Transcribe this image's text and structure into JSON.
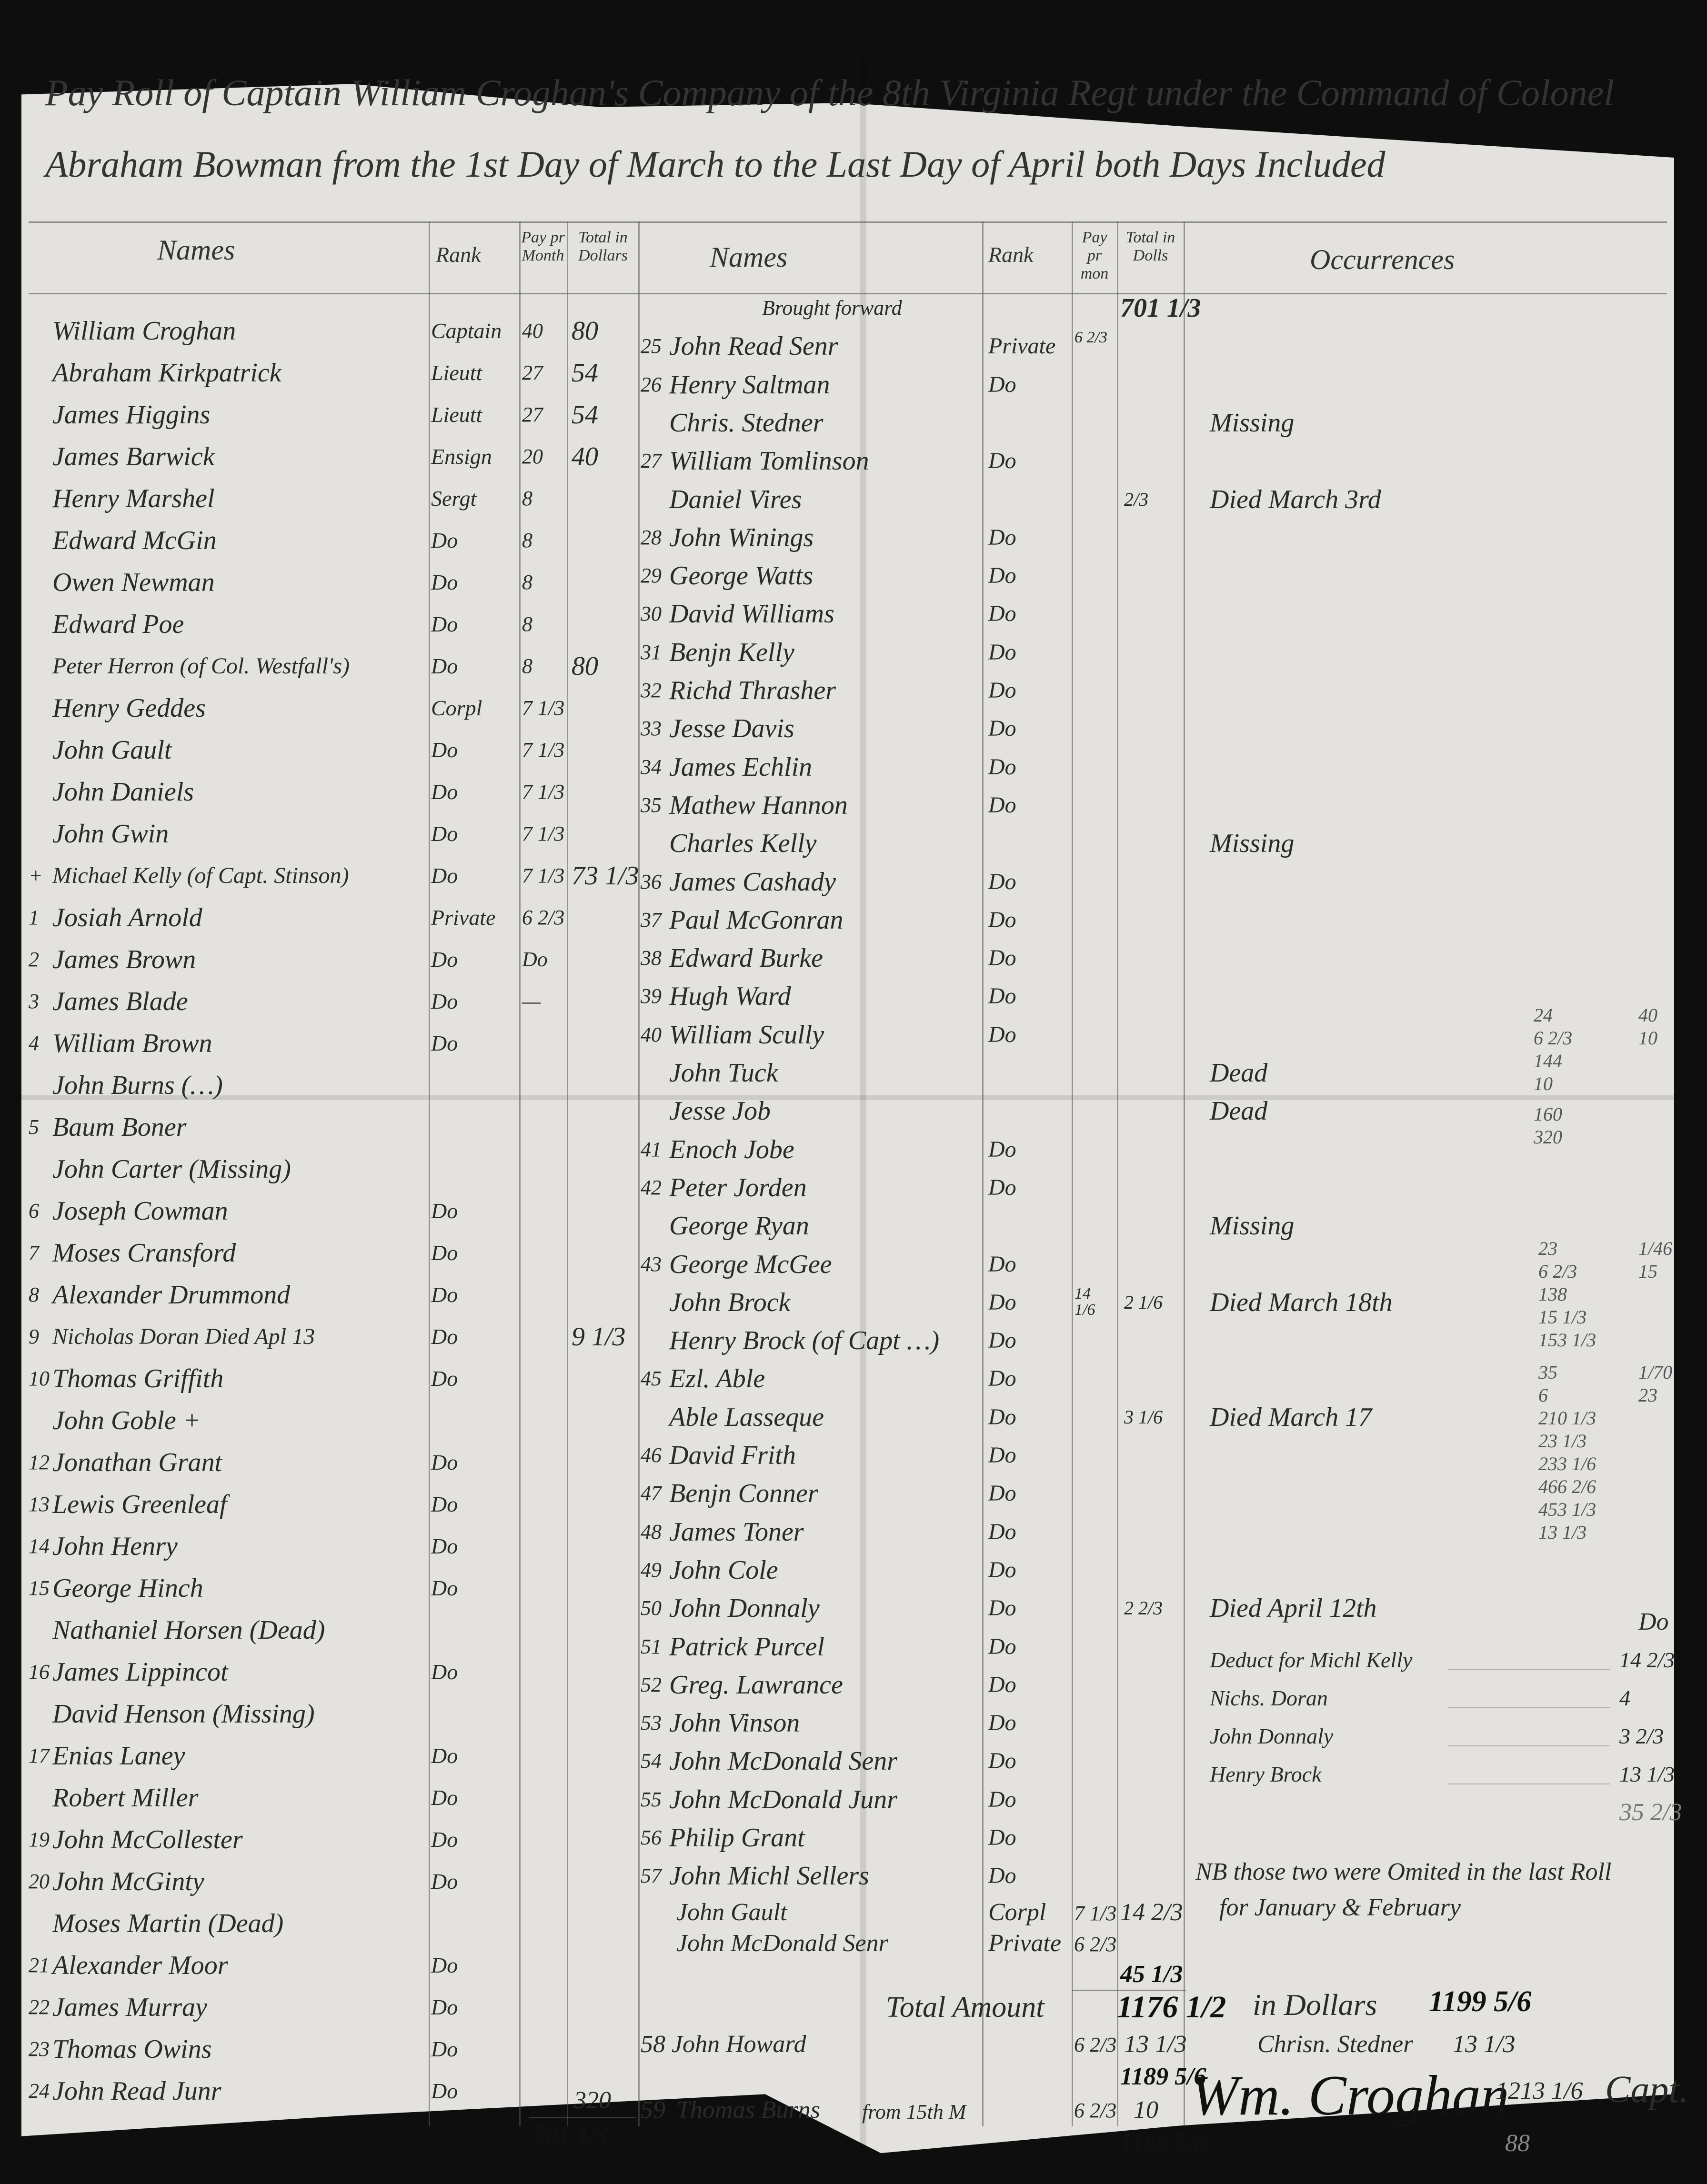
{
  "title": {
    "line1": "Pay Roll of Captain William Croghan's Company of the 8th Virginia Regt under the Command of Colonel",
    "line2": "Abraham Bowman from the 1st Day of March to the Last Day of April both Days Included"
  },
  "headers": {
    "left": {
      "names": "Names",
      "rank": "Rank",
      "pay": "Pay pr Month",
      "total": "Total in Dollars"
    },
    "right": {
      "names": "Names",
      "rank": "Rank",
      "pay": "Pay pr mon",
      "total": "Total in Dolls",
      "occurrences": "Occurrences"
    }
  },
  "left": {
    "rows": [
      {
        "num": "",
        "name": "William Croghan",
        "rank": "Captain",
        "pay": "40",
        "total": "80"
      },
      {
        "num": "",
        "name": "Abraham Kirkpatrick",
        "rank": "Lieutt",
        "pay": "27",
        "total": "54"
      },
      {
        "num": "",
        "name": "James Higgins",
        "rank": "Lieutt",
        "pay": "27",
        "total": "54"
      },
      {
        "num": "",
        "name": "James Barwick",
        "rank": "Ensign",
        "pay": "20",
        "total": "40"
      },
      {
        "num": "",
        "name": "Henry Marshel",
        "rank": "Sergt",
        "pay": "8",
        "total": ""
      },
      {
        "num": "",
        "name": "Edward McGin",
        "rank": "Do",
        "pay": "8",
        "total": ""
      },
      {
        "num": "",
        "name": "Owen Newman",
        "rank": "Do",
        "pay": "8",
        "total": ""
      },
      {
        "num": "",
        "name": "Edward Poe",
        "rank": "Do",
        "pay": "8",
        "total": ""
      },
      {
        "num": "",
        "name": "Peter Herron (of Col. Westfall's)",
        "rank": "Do",
        "pay": "8",
        "total": "80"
      },
      {
        "num": "",
        "name": "Henry Geddes",
        "rank": "Corpl",
        "pay": "7 1/3",
        "total": ""
      },
      {
        "num": "",
        "name": "John Gault",
        "rank": "Do",
        "pay": "7 1/3",
        "total": ""
      },
      {
        "num": "",
        "name": "John Daniels",
        "rank": "Do",
        "pay": "7 1/3",
        "total": ""
      },
      {
        "num": "",
        "name": "John Gwin",
        "rank": "Do",
        "pay": "7 1/3",
        "total": ""
      },
      {
        "num": "+",
        "name": "Michael Kelly (of Capt. Stinson)",
        "rank": "Do",
        "pay": "7 1/3",
        "total": "73 1/3"
      },
      {
        "num": "1",
        "name": "Josiah Arnold",
        "rank": "Private",
        "pay": "6 2/3",
        "total": ""
      },
      {
        "num": "2",
        "name": "James Brown",
        "rank": "Do",
        "pay": "Do",
        "total": ""
      },
      {
        "num": "3",
        "name": "James Blade",
        "rank": "Do",
        "pay": "—",
        "total": ""
      },
      {
        "num": "4",
        "name": "William Brown",
        "rank": "Do",
        "pay": "",
        "total": ""
      },
      {
        "num": "",
        "name": "John Burns (…)",
        "rank": "",
        "pay": "",
        "total": ""
      },
      {
        "num": "5",
        "name": "Baum Boner",
        "rank": "",
        "pay": "",
        "total": ""
      },
      {
        "num": "",
        "name": "John Carter (Missing)",
        "rank": "",
        "pay": "",
        "total": ""
      },
      {
        "num": "6",
        "name": "Joseph Cowman",
        "rank": "Do",
        "pay": "",
        "total": ""
      },
      {
        "num": "7",
        "name": "Moses Cransford",
        "rank": "Do",
        "pay": "",
        "total": ""
      },
      {
        "num": "8",
        "name": "Alexander Drummond",
        "rank": "Do",
        "pay": "",
        "total": ""
      },
      {
        "num": "9",
        "name": "Nicholas Doran Died Apl 13",
        "rank": "Do",
        "pay": "",
        "total": "9 1/3"
      },
      {
        "num": "10",
        "name": "Thomas Griffith",
        "rank": "Do",
        "pay": "",
        "total": ""
      },
      {
        "num": "",
        "name": "John Goble +",
        "rank": "",
        "pay": "",
        "total": ""
      },
      {
        "num": "12",
        "name": "Jonathan Grant",
        "rank": "Do",
        "pay": "",
        "total": ""
      },
      {
        "num": "13",
        "name": "Lewis Greenleaf",
        "rank": "Do",
        "pay": "",
        "total": ""
      },
      {
        "num": "14",
        "name": "John Henry",
        "rank": "Do",
        "pay": "",
        "total": ""
      },
      {
        "num": "15",
        "name": "George Hinch",
        "rank": "Do",
        "pay": "",
        "total": ""
      },
      {
        "num": "",
        "name": "Nathaniel Horsen (Dead)",
        "rank": "",
        "pay": "",
        "total": ""
      },
      {
        "num": "16",
        "name": "James Lippincot",
        "rank": "Do",
        "pay": "",
        "total": ""
      },
      {
        "num": "",
        "name": "David Henson (Missing)",
        "rank": "",
        "pay": "",
        "total": ""
      },
      {
        "num": "17",
        "name": "Enias Laney",
        "rank": "Do",
        "pay": "",
        "total": ""
      },
      {
        "num": "",
        "name": "Robert Miller",
        "rank": "Do",
        "pay": "",
        "total": ""
      },
      {
        "num": "19",
        "name": "John McCollester",
        "rank": "Do",
        "pay": "",
        "total": ""
      },
      {
        "num": "20",
        "name": "John McGinty",
        "rank": "Do",
        "pay": "",
        "total": ""
      },
      {
        "num": "",
        "name": "Moses Martin (Dead)",
        "rank": "",
        "pay": "",
        "total": ""
      },
      {
        "num": "21",
        "name": "Alexander Moor",
        "rank": "Do",
        "pay": "",
        "total": ""
      },
      {
        "num": "22",
        "name": "James Murray",
        "rank": "Do",
        "pay": "",
        "total": ""
      },
      {
        "num": "23",
        "name": "Thomas Owins",
        "rank": "Do",
        "pay": "",
        "total": ""
      },
      {
        "num": "24",
        "name": "John Read Junr",
        "rank": "Do",
        "pay": "",
        "total": ""
      }
    ],
    "subtotal": "320",
    "carried": "701 1/3"
  },
  "right": {
    "rows": [
      {
        "num": "",
        "name": "Brought forward",
        "rank": "",
        "pay": "",
        "total": "701 1/3",
        "occ": ""
      },
      {
        "num": "25",
        "name": "John Read Senr",
        "rank": "Private",
        "pay": "6 2/3",
        "total": "",
        "occ": ""
      },
      {
        "num": "26",
        "name": "Henry Saltman",
        "rank": "Do",
        "pay": "",
        "total": "",
        "occ": ""
      },
      {
        "num": "",
        "name": "Chris. Stedner",
        "rank": "",
        "pay": "",
        "total": "",
        "occ": "Missing"
      },
      {
        "num": "27",
        "name": "William Tomlinson",
        "rank": "Do",
        "pay": "",
        "total": "",
        "occ": ""
      },
      {
        "num": "",
        "name": "Daniel Vires",
        "rank": "",
        "pay": "",
        "total": "2/3",
        "occ": "Died March 3rd"
      },
      {
        "num": "28",
        "name": "John Winings",
        "rank": "Do",
        "pay": "",
        "total": "",
        "occ": ""
      },
      {
        "num": "29",
        "name": "George Watts",
        "rank": "Do",
        "pay": "",
        "total": "",
        "occ": ""
      },
      {
        "num": "30",
        "name": "David Williams",
        "rank": "Do",
        "pay": "",
        "total": "",
        "occ": ""
      },
      {
        "num": "31",
        "name": "Benjn Kelly",
        "rank": "Do",
        "pay": "",
        "total": "",
        "occ": ""
      },
      {
        "num": "32",
        "name": "Richd Thrasher",
        "rank": "Do",
        "pay": "",
        "total": "",
        "occ": ""
      },
      {
        "num": "33",
        "name": "Jesse Davis",
        "rank": "Do",
        "pay": "",
        "total": "",
        "occ": ""
      },
      {
        "num": "34",
        "name": "James Echlin",
        "rank": "Do",
        "pay": "",
        "total": "",
        "occ": ""
      },
      {
        "num": "35",
        "name": "Mathew Hannon",
        "rank": "Do",
        "pay": "",
        "total": "",
        "occ": ""
      },
      {
        "num": "",
        "name": "Charles Kelly",
        "rank": "",
        "pay": "",
        "total": "",
        "occ": "Missing"
      },
      {
        "num": "36",
        "name": "James Cashady",
        "rank": "Do",
        "pay": "",
        "total": "",
        "occ": ""
      },
      {
        "num": "37",
        "name": "Paul McGonran",
        "rank": "Do",
        "pay": "",
        "total": "",
        "occ": ""
      },
      {
        "num": "38",
        "name": "Edward Burke",
        "rank": "Do",
        "pay": "",
        "total": "",
        "occ": ""
      },
      {
        "num": "39",
        "name": "Hugh Ward",
        "rank": "Do",
        "pay": "",
        "total": "",
        "occ": ""
      },
      {
        "num": "40",
        "name": "William Scully",
        "rank": "Do",
        "pay": "",
        "total": "",
        "occ": ""
      },
      {
        "num": "",
        "name": "John Tuck",
        "rank": "",
        "pay": "",
        "total": "",
        "occ": "Dead"
      },
      {
        "num": "",
        "name": "Jesse Job",
        "rank": "",
        "pay": "",
        "total": "",
        "occ": "Dead"
      },
      {
        "num": "41",
        "name": "Enoch Jobe",
        "rank": "Do",
        "pay": "",
        "total": "",
        "occ": ""
      },
      {
        "num": "42",
        "name": "Peter Jorden",
        "rank": "Do",
        "pay": "",
        "total": "",
        "occ": ""
      },
      {
        "num": "",
        "name": "George Ryan",
        "rank": "",
        "pay": "",
        "total": "",
        "occ": "Missing"
      },
      {
        "num": "43",
        "name": "George McGee",
        "rank": "Do",
        "pay": "",
        "total": "",
        "occ": ""
      },
      {
        "num": "",
        "name": "John Brock",
        "rank": "Do",
        "pay": "14 1/6",
        "total": "2 1/6",
        "occ": "Died March 18th"
      },
      {
        "num": "",
        "name": "Henry Brock (of Capt …)",
        "rank": "Do",
        "pay": "",
        "total": "",
        "occ": ""
      },
      {
        "num": "45",
        "name": "Ezl. Able",
        "rank": "Do",
        "pay": "",
        "total": "",
        "occ": ""
      },
      {
        "num": "",
        "name": "Able Lasseque",
        "rank": "Do",
        "pay": "",
        "total": "3 1/6",
        "occ": "Died March 17"
      },
      {
        "num": "46",
        "name": "David Frith",
        "rank": "Do",
        "pay": "",
        "total": "",
        "occ": ""
      },
      {
        "num": "47",
        "name": "Benjn Conner",
        "rank": "Do",
        "pay": "",
        "total": "",
        "occ": ""
      },
      {
        "num": "48",
        "name": "James Toner",
        "rank": "Do",
        "pay": "",
        "total": "",
        "occ": ""
      },
      {
        "num": "49",
        "name": "John Cole",
        "rank": "Do",
        "pay": "",
        "total": "",
        "occ": ""
      },
      {
        "num": "50",
        "name": "John Donnaly",
        "rank": "Do",
        "pay": "",
        "total": "2 2/3",
        "occ": "Died April 12th"
      },
      {
        "num": "51",
        "name": "Patrick Purcel",
        "rank": "Do",
        "pay": "",
        "total": "",
        "occ": ""
      },
      {
        "num": "52",
        "name": "Greg. Lawrance",
        "rank": "Do",
        "pay": "",
        "total": "",
        "occ": ""
      },
      {
        "num": "53",
        "name": "John Vinson",
        "rank": "Do",
        "pay": "",
        "total": "",
        "occ": ""
      },
      {
        "num": "54",
        "name": "John McDonald Senr",
        "rank": "Do",
        "pay": "",
        "total": "",
        "occ": ""
      },
      {
        "num": "55",
        "name": "John McDonald Junr",
        "rank": "Do",
        "pay": "",
        "total": "",
        "occ": ""
      },
      {
        "num": "56",
        "name": "Philip Grant",
        "rank": "Do",
        "pay": "",
        "total": "",
        "occ": ""
      },
      {
        "num": "57",
        "name": "John Michl Sellers",
        "rank": "Do",
        "pay": "",
        "total": "",
        "occ": ""
      }
    ],
    "extra": {
      "gault": {
        "name": "John Gault",
        "rank": "Corpl",
        "pay": "7 1/3",
        "total": "14 2/3"
      },
      "mcdonald": {
        "name": "John McDonald Senr",
        "rank": "Private",
        "pay": "6 2/3"
      },
      "subtotal": "45 1/3",
      "total_label": "Total Amount",
      "total_value": "1176 1/2",
      "howard": {
        "num": "58",
        "name": "John Howard",
        "pay": "6 2/3",
        "total": "13 1/3"
      },
      "running": "1189 5/6",
      "burns": {
        "num": "59",
        "name": "Thomas Burns",
        "rank": "from 15th M",
        "pay": "6 2/3",
        "total": "10"
      },
      "grand": "1199 5/6"
    }
  },
  "deductions": {
    "header": "Do",
    "items": [
      {
        "label": "Deduct for Michl Kelly",
        "value": "14 2/3"
      },
      {
        "label": "Nichs. Doran",
        "value": "4"
      },
      {
        "label": "John Donnaly",
        "value": "3 2/3"
      },
      {
        "label": "Henry Brock",
        "value": "13 1/3"
      }
    ],
    "total": "35 2/3"
  },
  "nb": {
    "line1": "NB those two were Omited in the last Roll",
    "line2": "for January & February"
  },
  "summary": {
    "in_dollars_label": "in Dollars",
    "in_dollars_value": "1199 5/6",
    "stedner_label": "Chrisn. Stedner",
    "stedner_value": "13 1/3",
    "after_sig": "1213 1/6",
    "signature": "Wm. Croghan",
    "capt": "Capt.",
    "page_mark": "88"
  },
  "margin_calcs": [
    "24",
    "6 2/3",
    "144",
    "10",
    "160",
    "320",
    "40",
    "10",
    "23",
    "6 2/3",
    "138",
    "15 1/3",
    "153 1/3",
    "1/46",
    "15",
    "35",
    "6",
    "210 1/3",
    "23 1/3",
    "233 1/6",
    "466 2/6",
    "453 1/3",
    "13 1/3",
    "1/70",
    "23"
  ]
}
